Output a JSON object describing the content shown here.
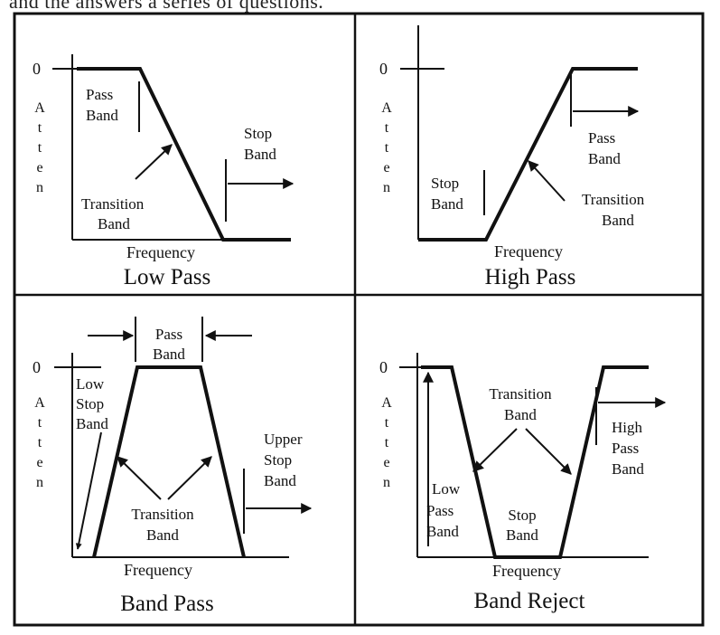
{
  "header_fragment": "and the answers a series of questions.",
  "panels": {
    "low_pass": {
      "title": "Low Pass",
      "xlabel": "Frequency",
      "zero": "0",
      "axis_letters": [
        "A",
        "t",
        "t",
        "e",
        "n"
      ],
      "pass_band": [
        "Pass",
        "Band"
      ],
      "stop_band": [
        "Stop",
        "Band"
      ],
      "transition_band": [
        "Transition",
        "Band"
      ]
    },
    "high_pass": {
      "title": "High Pass",
      "xlabel": "Frequency",
      "zero": "0",
      "axis_letters": [
        "A",
        "t",
        "t",
        "e",
        "n"
      ],
      "stop_band": [
        "Stop",
        "Band"
      ],
      "pass_band": [
        "Pass",
        "Band"
      ],
      "transition_band": [
        "Transition",
        "Band"
      ]
    },
    "band_pass": {
      "title": "Band Pass",
      "xlabel": "Frequency",
      "zero": "0",
      "axis_letters": [
        "A",
        "t",
        "t",
        "e",
        "n"
      ],
      "pass_band": [
        "Pass",
        "Band"
      ],
      "low_stop_band": [
        "Low",
        "Stop",
        "Band"
      ],
      "upper_stop_band": [
        "Upper",
        "Stop",
        "Band"
      ],
      "transition_band": [
        "Transition",
        "Band"
      ]
    },
    "band_reject": {
      "title": "Band Reject",
      "xlabel": "Frequency",
      "zero": "0",
      "axis_letters": [
        "A",
        "t",
        "t",
        "e",
        "n"
      ],
      "transition_band": [
        "Transition",
        "Band"
      ],
      "high_pass_band": [
        "High",
        "Pass",
        "Band"
      ],
      "low_pass_band": [
        "Low",
        "Pass",
        "Band"
      ],
      "stop_band": [
        "Stop",
        "Band"
      ]
    }
  }
}
